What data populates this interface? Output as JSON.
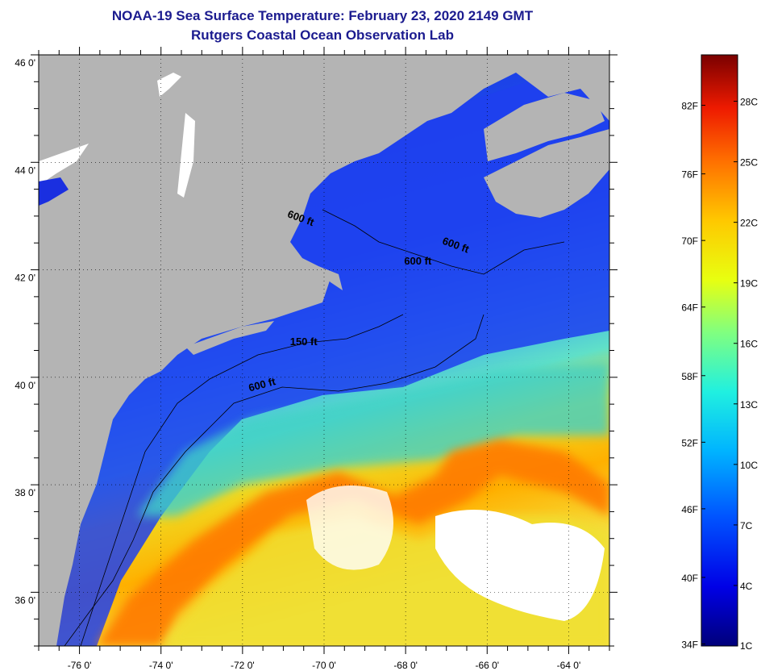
{
  "title": "NOAA-19 Sea Surface Temperature:  February 23, 2020 2149 GMT",
  "subtitle": "Rutgers Coastal Ocean Observation Lab",
  "colors": {
    "land": "#b4b4b4",
    "cloud": "#ffffff",
    "title_text": "#1b1b8f"
  },
  "map": {
    "lon_range": [
      -77,
      -63
    ],
    "lat_range": [
      35,
      46
    ],
    "lat_ticks": [
      {
        "value": 46,
        "label": "46 0'"
      },
      {
        "value": 44,
        "label": "44 0'"
      },
      {
        "value": 42,
        "label": "42 0'"
      },
      {
        "value": 40,
        "label": "40 0'"
      },
      {
        "value": 38,
        "label": "38 0'"
      },
      {
        "value": 36,
        "label": "36 0'"
      }
    ],
    "lon_ticks": [
      {
        "value": -76,
        "label": "-76 0'"
      },
      {
        "value": -74,
        "label": "-74 0'"
      },
      {
        "value": -72,
        "label": "-72 0'"
      },
      {
        "value": -70,
        "label": "-70 0'"
      },
      {
        "value": -68,
        "label": "-68 0'"
      },
      {
        "value": -66,
        "label": "-66 0'"
      },
      {
        "value": -64,
        "label": "-64 0'"
      }
    ],
    "contour_labels": [
      {
        "text": "600 ft",
        "lon": -70.6,
        "lat": 42.9
      },
      {
        "text": "600 ft",
        "lon": -66.8,
        "lat": 42.4
      },
      {
        "text": "600 ft",
        "lon": -67.7,
        "lat": 42.1
      },
      {
        "text": "150 ft",
        "lon": -70.5,
        "lat": 40.6
      },
      {
        "text": "600 ft",
        "lon": -71.5,
        "lat": 39.8
      }
    ]
  },
  "colorbar": {
    "f_labels": [
      {
        "label": "34F",
        "value_c": 1.1
      },
      {
        "label": "40F",
        "value_c": 4.4
      },
      {
        "label": "46F",
        "value_c": 7.8
      },
      {
        "label": "52F",
        "value_c": 11.1
      },
      {
        "label": "58F",
        "value_c": 14.4
      },
      {
        "label": "64F",
        "value_c": 17.8
      },
      {
        "label": "70F",
        "value_c": 21.1
      },
      {
        "label": "76F",
        "value_c": 24.4
      },
      {
        "label": "82F",
        "value_c": 27.8
      }
    ],
    "c_labels": [
      {
        "label": "1C",
        "value_c": 1
      },
      {
        "label": "4C",
        "value_c": 4
      },
      {
        "label": "7C",
        "value_c": 7
      },
      {
        "label": "10C",
        "value_c": 10
      },
      {
        "label": "13C",
        "value_c": 13
      },
      {
        "label": "16C",
        "value_c": 16
      },
      {
        "label": "19C",
        "value_c": 19
      },
      {
        "label": "22C",
        "value_c": 22
      },
      {
        "label": "25C",
        "value_c": 25
      },
      {
        "label": "28C",
        "value_c": 28
      }
    ],
    "range_c": [
      1,
      30.3
    ]
  }
}
